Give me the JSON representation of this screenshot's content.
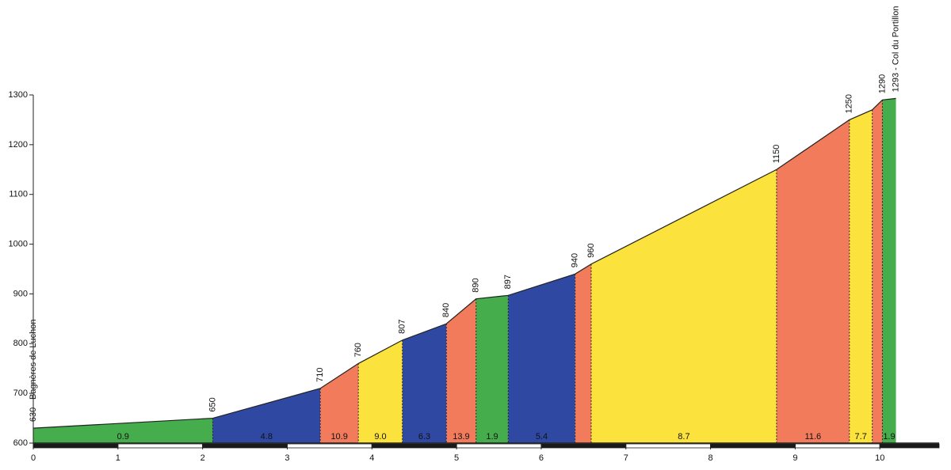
{
  "chart_data": {
    "type": "profile",
    "x": [
      0,
      2.12,
      3.39,
      3.84,
      4.36,
      4.88,
      5.23,
      5.61,
      6.4,
      6.59,
      8.78,
      9.64,
      9.91,
      10.03,
      10.19
    ],
    "elevations": [
      630,
      650,
      710,
      760,
      807,
      840,
      890,
      897,
      940,
      960,
      1150,
      1250,
      1270,
      1290,
      1293
    ],
    "value_labels": [
      "630 - Bagnères de Luchon",
      "650",
      "710",
      "760",
      "807",
      "840",
      "890",
      "897",
      "940",
      "960",
      "1150",
      "1250",
      null,
      "1290",
      "1293 - Col du Portillon"
    ],
    "gradients": [
      0.9,
      4.8,
      10.9,
      9.0,
      6.3,
      13.9,
      1.9,
      5.4,
      null,
      8.7,
      11.6,
      7.7,
      null,
      1.9
    ],
    "gradient_labels": [
      "0.9",
      "4.8",
      "10.9",
      "9.0",
      "6.3",
      "13.9",
      "1.9",
      "5.4",
      null,
      "8.7",
      "11.6",
      "7.7",
      null,
      "1.9"
    ],
    "colors": [
      "#45ad4c",
      "#2f49a3",
      "#f27b5b",
      "#fbe23c",
      "#2f49a3",
      "#f27b5b",
      "#45ad4c",
      "#2f49a3",
      "#f27b5b",
      "#fbe23c",
      "#f27b5b",
      "#fbe23c",
      "#f27b5b",
      "#45ad4c"
    ],
    "xlim": [
      0,
      10.7
    ],
    "xticks": [
      0,
      1,
      2,
      3,
      4,
      5,
      6,
      7,
      8,
      9,
      10
    ],
    "ylim": [
      600,
      1300
    ],
    "yticks": [
      600,
      700,
      800,
      900,
      1000,
      1100,
      1200,
      1300
    ]
  }
}
